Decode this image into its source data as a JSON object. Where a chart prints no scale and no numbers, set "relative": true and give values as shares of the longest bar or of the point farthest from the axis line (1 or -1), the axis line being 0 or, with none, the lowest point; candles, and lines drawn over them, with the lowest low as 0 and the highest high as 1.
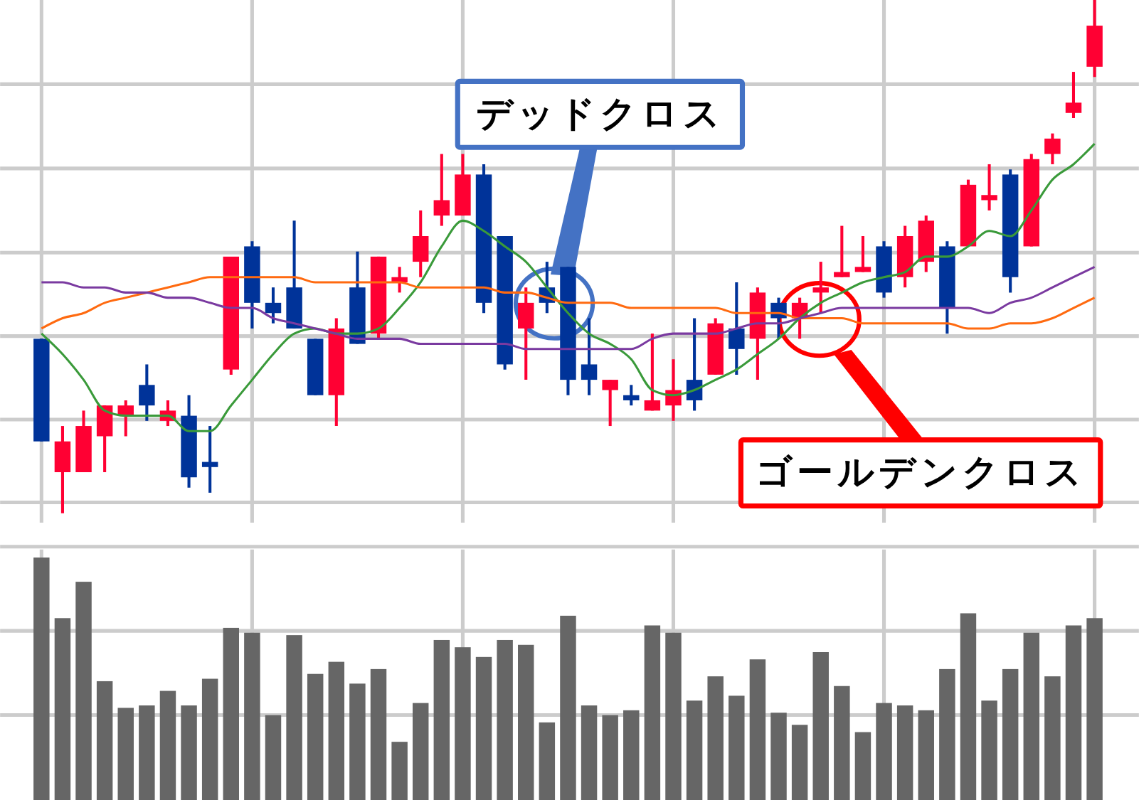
{
  "chart_data": [
    {
      "type": "candlestick",
      "relative": true,
      "grid": true,
      "categories": [
        null,
        null,
        null,
        null,
        null,
        null,
        null,
        null,
        null,
        null,
        null,
        null,
        null,
        null,
        null,
        null,
        null,
        null,
        null,
        null,
        null,
        null,
        null,
        null,
        null,
        null,
        null,
        null,
        null,
        null,
        null,
        null,
        null,
        null,
        null,
        null,
        null,
        null,
        null,
        null,
        null,
        null,
        null,
        null,
        null,
        null,
        null,
        null,
        null,
        null,
        null
      ],
      "ohlc": [
        [
          0.34,
          0.34,
          0.14,
          0.14
        ],
        [
          0.08,
          0.17,
          0,
          0.14
        ],
        [
          0.08,
          0.2,
          0.08,
          0.17
        ],
        [
          0.15,
          0.21,
          0.08,
          0.21
        ],
        [
          0.19,
          0.22,
          0.15,
          0.21
        ],
        [
          0.25,
          0.29,
          0.18,
          0.21
        ],
        [
          0.18,
          0.22,
          0.17,
          0.2
        ],
        [
          0.19,
          0.23,
          0.05,
          0.07
        ],
        [
          0.1,
          0.17,
          0.04,
          0.09
        ],
        [
          0.28,
          0.5,
          0.27,
          0.5
        ],
        [
          0.52,
          0.53,
          0.36,
          0.41
        ],
        [
          0.41,
          0.44,
          0.37,
          0.39
        ],
        [
          0.44,
          0.57,
          0.36,
          0.36
        ],
        [
          0.34,
          0.34,
          0.23,
          0.23
        ],
        [
          0.23,
          0.38,
          0.17,
          0.36
        ],
        [
          0.44,
          0.51,
          0.33,
          0.33
        ],
        [
          0.35,
          0.5,
          0.34,
          0.5
        ],
        [
          0.45,
          0.48,
          0.43,
          0.46
        ],
        [
          0.49,
          0.59,
          0.46,
          0.54
        ],
        [
          0.58,
          0.7,
          0.56,
          0.61
        ],
        [
          0.58,
          0.7,
          0.58,
          0.66
        ],
        [
          0.66,
          0.68,
          0.39,
          0.41
        ],
        [
          0.54,
          0.54,
          0.28,
          0.29
        ],
        [
          0.36,
          0.44,
          0.26,
          0.41
        ],
        [
          0.44,
          0.49,
          0.39,
          0.41
        ],
        [
          0.48,
          0.48,
          0.23,
          0.26
        ],
        [
          0.29,
          0.38,
          0.23,
          0.26
        ],
        [
          0.24,
          0.26,
          0.17,
          0.26
        ],
        [
          0.23,
          0.25,
          0.21,
          0.22
        ],
        [
          0.2,
          0.35,
          0.2,
          0.22
        ],
        [
          0.21,
          0.3,
          0.18,
          0.24
        ],
        [
          0.26,
          0.38,
          0.2,
          0.22
        ],
        [
          0.27,
          0.38,
          0.27,
          0.37
        ],
        [
          0.36,
          0.45,
          0.27,
          0.32
        ],
        [
          0.34,
          0.44,
          0.26,
          0.43
        ],
        [
          0.41,
          0.42,
          0.34,
          0.38
        ],
        [
          0.38,
          0.42,
          0.34,
          0.41
        ],
        [
          0.43,
          0.49,
          0.39,
          0.44
        ],
        [
          0.46,
          0.56,
          0.46,
          0.47
        ],
        [
          0.47,
          0.54,
          0.47,
          0.48
        ],
        [
          0.52,
          0.53,
          0.42,
          0.43
        ],
        [
          0.46,
          0.56,
          0.44,
          0.54
        ],
        [
          0.49,
          0.58,
          0.47,
          0.57
        ],
        [
          0.52,
          0.53,
          0.35,
          0.4
        ],
        [
          0.52,
          0.65,
          0.52,
          0.64
        ],
        [
          0.61,
          0.68,
          0.59,
          0.62
        ],
        [
          0.66,
          0.67,
          0.43,
          0.46
        ],
        [
          0.52,
          0.7,
          0.52,
          0.69
        ],
        [
          0.7,
          0.74,
          0.68,
          0.73
        ],
        [
          0.78,
          0.86,
          0.77,
          0.8
        ],
        [
          0.87,
          1,
          0.85,
          0.95
        ]
      ],
      "colors": [
        "#003399",
        "#ff0033",
        "#ff0033",
        "#ff0033",
        "#ff0033",
        "#003399",
        "#ff0033",
        "#003399",
        "#003399",
        "#ff0033",
        "#003399",
        "#003399",
        "#003399",
        "#003399",
        "#ff0033",
        "#003399",
        "#ff0033",
        "#ff0033",
        "#ff0033",
        "#ff0033",
        "#ff0033",
        "#003399",
        "#003399",
        "#ff0033",
        "#003399",
        "#003399",
        "#003399",
        "#ff0033",
        "#003399",
        "#ff0033",
        "#ff0033",
        "#003399",
        "#ff0033",
        "#003399",
        "#ff0033",
        "#003399",
        "#ff0033",
        "#ff0033",
        "#ff0033",
        "#ff0033",
        "#003399",
        "#ff0033",
        "#ff0033",
        "#003399",
        "#ff0033",
        "#ff0033",
        "#003399",
        "#ff0033",
        "#ff0033",
        "#ff0033",
        "#ff0033"
      ],
      "series": [
        {
          "type": "line",
          "color": "#3a9a3a",
          "values": [
            0.35,
            0.31,
            0.26,
            0.2,
            0.19,
            0.19,
            0.19,
            0.16,
            0.16,
            0.21,
            0.26,
            0.31,
            0.35,
            0.36,
            0.35,
            0.35,
            0.36,
            0.4,
            0.45,
            0.52,
            0.57,
            0.55,
            0.52,
            0.49,
            0.44,
            0.39,
            0.35,
            0.33,
            0.3,
            0.24,
            0.23,
            0.24,
            0.26,
            0.28,
            0.31,
            0.34,
            0.38,
            0.41,
            0.43,
            0.45,
            0.46,
            0.47,
            0.5,
            0.5,
            0.52,
            0.55,
            0.54,
            0.59,
            0.65,
            0.68,
            0.72
          ]
        },
        {
          "type": "line",
          "color": "#ff6a10",
          "values": [
            0.36,
            0.38,
            0.39,
            0.41,
            0.42,
            0.43,
            0.44,
            0.45,
            0.46,
            0.46,
            0.46,
            0.46,
            0.46,
            0.45,
            0.45,
            0.45,
            0.45,
            0.45,
            0.44,
            0.44,
            0.44,
            0.44,
            0.43,
            0.43,
            0.42,
            0.41,
            0.41,
            0.41,
            0.4,
            0.4,
            0.4,
            0.4,
            0.4,
            0.39,
            0.39,
            0.39,
            0.38,
            0.38,
            0.38,
            0.37,
            0.37,
            0.37,
            0.37,
            0.37,
            0.36,
            0.36,
            0.37,
            0.37,
            0.38,
            0.4,
            0.42
          ]
        },
        {
          "type": "line",
          "color": "#7a3aa0",
          "values": [
            0.45,
            0.45,
            0.44,
            0.44,
            0.43,
            0.43,
            0.42,
            0.42,
            0.41,
            0.4,
            0.4,
            0.38,
            0.37,
            0.36,
            0.35,
            0.34,
            0.34,
            0.34,
            0.33,
            0.33,
            0.33,
            0.33,
            0.33,
            0.32,
            0.32,
            0.32,
            0.32,
            0.32,
            0.32,
            0.34,
            0.35,
            0.35,
            0.35,
            0.36,
            0.37,
            0.37,
            0.38,
            0.39,
            0.4,
            0.4,
            0.4,
            0.4,
            0.4,
            0.4,
            0.4,
            0.39,
            0.41,
            0.42,
            0.44,
            0.46,
            0.48
          ]
        }
      ],
      "annotations": [
        "デッドクロス",
        "ゴールデンクロス"
      ]
    },
    {
      "type": "bar",
      "relative": true,
      "grid": true,
      "color": "#666666",
      "categories": [
        null,
        null,
        null,
        null,
        null,
        null,
        null,
        null,
        null,
        null,
        null,
        null,
        null,
        null,
        null,
        null,
        null,
        null,
        null,
        null,
        null,
        null,
        null,
        null,
        null,
        null,
        null,
        null,
        null,
        null,
        null,
        null,
        null,
        null,
        null,
        null,
        null,
        null,
        null,
        null,
        null,
        null,
        null,
        null,
        null,
        null,
        null,
        null,
        null,
        null,
        null
      ],
      "values": [
        1,
        0.75,
        0.9,
        0.49,
        0.38,
        0.39,
        0.45,
        0.39,
        0.5,
        0.71,
        0.69,
        0.35,
        0.68,
        0.52,
        0.57,
        0.48,
        0.54,
        0.24,
        0.4,
        0.66,
        0.63,
        0.59,
        0.66,
        0.64,
        0.32,
        0.76,
        0.39,
        0.35,
        0.37,
        0.72,
        0.69,
        0.41,
        0.51,
        0.43,
        0.58,
        0.36,
        0.31,
        0.61,
        0.47,
        0.28,
        0.4,
        0.39,
        0.37,
        0.54,
        0.77,
        0.41,
        0.54,
        0.69,
        0.51,
        0.72,
        0.75
      ]
    }
  ]
}
